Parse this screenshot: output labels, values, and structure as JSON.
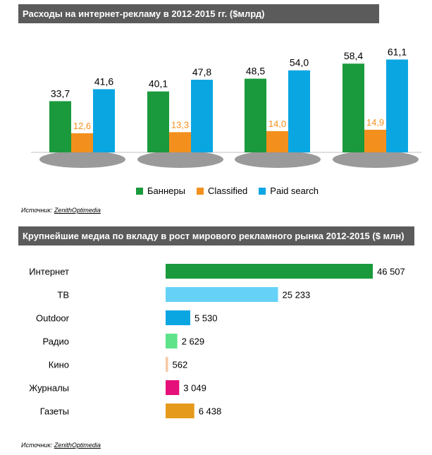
{
  "chart1": {
    "title": "Расходы на интернет-рекламу в 2012-2015 гг. ($млрд)",
    "source_prefix": "Источник: ",
    "source_name": "ZenithOptimedia"
  },
  "chart2": {
    "title": "Крупнейшие медиа по вкладу в рост мирового рекламного рынка 2012-2015  ($ млн)",
    "source_prefix": "Источник: ",
    "source_name": "ZenithOptimedia"
  },
  "chart_data": [
    {
      "type": "bar",
      "title": "Расходы на интернет-рекламу в 2012-2015 гг. ($млрд)",
      "categories": [
        "",
        "",
        "",
        ""
      ],
      "series": [
        {
          "name": "Баннеры",
          "color": "#1a9a3c",
          "values": [
            33.7,
            40.1,
            48.5,
            58.4
          ],
          "labels": [
            "33,7",
            "40,1",
            "48,5",
            "58,4"
          ]
        },
        {
          "name": "Classified",
          "color": "#f3901d",
          "values": [
            12.6,
            13.3,
            14.0,
            14.9
          ],
          "labels": [
            "12,6",
            "13,3",
            "14,0",
            "14,9"
          ]
        },
        {
          "name": "Paid search",
          "color": "#0aa6e2",
          "values": [
            41.6,
            47.8,
            54.0,
            61.1
          ],
          "labels": [
            "41,6",
            "47,8",
            "54,0",
            "61,1"
          ]
        }
      ],
      "ylim": [
        0,
        65
      ],
      "legend": "bottom",
      "grid": false
    },
    {
      "type": "bar",
      "orientation": "horizontal",
      "title": "Крупнейшие медиа по вкладу в рост мирового рекламного рынка 2012-2015  ($ млн)",
      "categories": [
        "Интернет",
        "ТВ",
        "Outdoor",
        "Радио",
        "Кино",
        "Журналы",
        "Газеты"
      ],
      "values": [
        46507,
        25233,
        5530,
        2629,
        562,
        3049,
        6438
      ],
      "labels": [
        "46 507",
        "25 233",
        "5 530",
        "2 629",
        "562",
        "3 049",
        "6 438"
      ],
      "colors": [
        "#1a9a3c",
        "#66d2f7",
        "#0aa6e2",
        "#5ee38a",
        "#f7c9a5",
        "#e5107a",
        "#e69a1b"
      ],
      "xlim": [
        0,
        46507
      ],
      "grid": false
    }
  ]
}
